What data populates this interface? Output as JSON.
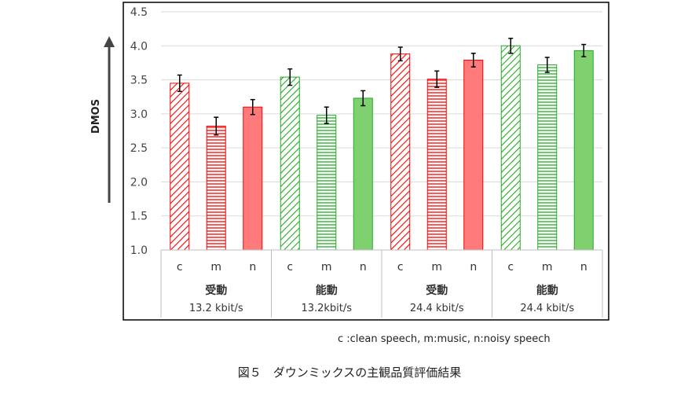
{
  "chart_data": {
    "type": "bar",
    "ylabel": "DMOS",
    "ylim": [
      1.0,
      4.5
    ],
    "yticks": [
      "1.0",
      "1.5",
      "2.0",
      "2.5",
      "3.0",
      "3.5",
      "4.0",
      "4.5"
    ],
    "grid": true,
    "groups": [
      {
        "name": "受動",
        "rate": "13.2 kbit/s",
        "color": "#ff0000",
        "bars": [
          {
            "category": "c",
            "pattern": "diagonal",
            "value": 3.45,
            "err": 0.12
          },
          {
            "category": "m",
            "pattern": "horizontal",
            "value": 2.82,
            "err": 0.13
          },
          {
            "category": "n",
            "pattern": "solid",
            "value": 3.1,
            "err": 0.11
          }
        ]
      },
      {
        "name": "能動",
        "rate": "13.2kbit/s",
        "color": "#22aa22",
        "bars": [
          {
            "category": "c",
            "pattern": "diagonal",
            "value": 3.54,
            "err": 0.12
          },
          {
            "category": "m",
            "pattern": "horizontal",
            "value": 2.98,
            "err": 0.12
          },
          {
            "category": "n",
            "pattern": "solid",
            "value": 3.23,
            "err": 0.11
          }
        ]
      },
      {
        "name": "受動",
        "rate": "24.4 kbit/s",
        "color": "#ff0000",
        "bars": [
          {
            "category": "c",
            "pattern": "diagonal",
            "value": 3.88,
            "err": 0.1
          },
          {
            "category": "m",
            "pattern": "horizontal",
            "value": 3.51,
            "err": 0.12
          },
          {
            "category": "n",
            "pattern": "solid",
            "value": 3.79,
            "err": 0.1
          }
        ]
      },
      {
        "name": "能動",
        "rate": "24.4 kbit/s",
        "color": "#22aa22",
        "bars": [
          {
            "category": "c",
            "pattern": "diagonal",
            "value": 4.0,
            "err": 0.11
          },
          {
            "category": "m",
            "pattern": "horizontal",
            "value": 3.72,
            "err": 0.11
          },
          {
            "category": "n",
            "pattern": "solid",
            "value": 3.93,
            "err": 0.09
          }
        ]
      }
    ],
    "annotations": [
      "c :clean speech, m:music, n:noisy speech"
    ]
  },
  "figure": {
    "caption": "図５　ダウンミックスの主観品質評価結果"
  },
  "colors": {
    "red": "#ff0000",
    "red_fill": "#ff7b7b",
    "green": "#22aa22",
    "green_fill": "#7fd16f",
    "grid": "#d9d9d9",
    "frame": "#000000",
    "errorbar": "#000000"
  }
}
